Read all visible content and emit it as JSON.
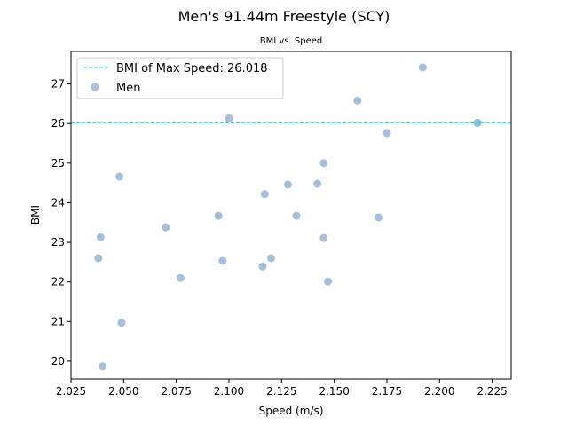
{
  "chart_data": {
    "type": "scatter",
    "title": "Men's 91.44m Freestyle (SCY)",
    "subtitle": "BMI vs. Speed",
    "xlabel": "Speed (m/s)",
    "ylabel": "BMI",
    "xlim": [
      2.025,
      2.234
    ],
    "ylim": [
      19.55,
      27.82
    ],
    "xticks": [
      "2.025",
      "2.050",
      "2.075",
      "2.100",
      "2.125",
      "2.150",
      "2.175",
      "2.200",
      "2.225"
    ],
    "yticks": [
      "20",
      "21",
      "22",
      "23",
      "24",
      "25",
      "26",
      "27"
    ],
    "legend_position": "upper-left",
    "reference_line": {
      "label": "BMI of Max Speed: 26.018",
      "y": 26.018,
      "color": "#00e5ee",
      "style": "dashed"
    },
    "series": [
      {
        "name": "Men",
        "color": "#8fafd4",
        "points": [
          {
            "x": 2.038,
            "y": 22.6
          },
          {
            "x": 2.039,
            "y": 23.13
          },
          {
            "x": 2.04,
            "y": 19.87
          },
          {
            "x": 2.048,
            "y": 24.66
          },
          {
            "x": 2.049,
            "y": 20.97
          },
          {
            "x": 2.07,
            "y": 23.38
          },
          {
            "x": 2.077,
            "y": 22.1
          },
          {
            "x": 2.095,
            "y": 23.67
          },
          {
            "x": 2.097,
            "y": 22.53
          },
          {
            "x": 2.1,
            "y": 26.13
          },
          {
            "x": 2.116,
            "y": 22.39
          },
          {
            "x": 2.117,
            "y": 24.22
          },
          {
            "x": 2.12,
            "y": 22.6
          },
          {
            "x": 2.128,
            "y": 24.46
          },
          {
            "x": 2.132,
            "y": 23.67
          },
          {
            "x": 2.142,
            "y": 24.48
          },
          {
            "x": 2.145,
            "y": 25.0
          },
          {
            "x": 2.145,
            "y": 23.11
          },
          {
            "x": 2.147,
            "y": 22.01
          },
          {
            "x": 2.161,
            "y": 26.58
          },
          {
            "x": 2.171,
            "y": 23.63
          },
          {
            "x": 2.175,
            "y": 25.76
          },
          {
            "x": 2.192,
            "y": 27.42
          },
          {
            "x": 2.218,
            "y": 26.018
          }
        ]
      }
    ],
    "highlight_point": {
      "x": 2.218,
      "y": 26.018,
      "color": "#7fc0dd"
    }
  }
}
